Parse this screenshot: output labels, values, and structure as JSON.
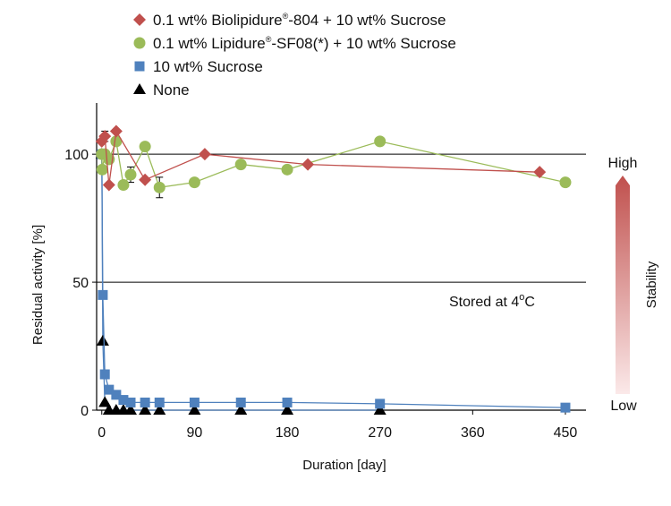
{
  "chart_data": {
    "type": "line",
    "xlabel": "Duration [day]",
    "ylabel": "Residual activity [%]",
    "xlim": [
      -5,
      470
    ],
    "ylim": [
      0,
      120
    ],
    "xticks": [
      0,
      90,
      180,
      270,
      360,
      450
    ],
    "yticks": [
      0,
      50,
      100
    ],
    "reference_lines": [
      50,
      100
    ],
    "grid": false,
    "legend_position": "top-left",
    "annotation": {
      "text_main": "Stored at 4",
      "text_sup": "o",
      "text_end": "C"
    },
    "stability_scale": {
      "label": "Stability",
      "high": "High",
      "low": "Low",
      "high_color": "#c0504d",
      "low_color": "#fbe9e9"
    },
    "series": [
      {
        "name_main": "0.1 wt% Biolipidure",
        "name_sup": "®",
        "name_end": "-804 + 10 wt% Sucrose",
        "marker": "diamond",
        "color": "#c0504d",
        "line_color": "#c0504d",
        "points": [
          [
            0,
            105
          ],
          [
            3,
            107
          ],
          [
            7,
            88
          ],
          [
            14,
            109
          ],
          [
            42,
            90
          ],
          [
            100,
            100
          ],
          [
            200,
            96
          ],
          [
            425,
            93
          ]
        ],
        "errors": [
          [
            3,
            2
          ]
        ]
      },
      {
        "name_main": "0.1 wt% Lipidure",
        "name_sup": "®",
        "name_end": "-SF08(*) + 10 wt% Sucrose",
        "marker": "circle",
        "color": "#9bbb59",
        "line_color": "#9bbb59",
        "points": [
          [
            0,
            100
          ],
          [
            0.5,
            94
          ],
          [
            3,
            100
          ],
          [
            7,
            98
          ],
          [
            14,
            105
          ],
          [
            21,
            88
          ],
          [
            28,
            92
          ],
          [
            42,
            103
          ],
          [
            56,
            87
          ],
          [
            90,
            89
          ],
          [
            135,
            96
          ],
          [
            180,
            94
          ],
          [
            270,
            105
          ],
          [
            450,
            89
          ]
        ],
        "errors": [
          [
            28,
            3
          ],
          [
            56,
            4
          ]
        ]
      },
      {
        "name_main": "10 wt% Sucrose",
        "name_sup": "",
        "name_end": "",
        "marker": "square",
        "color": "#4f81bd",
        "line_color": "#4f81bd",
        "points": [
          [
            0,
            100
          ],
          [
            1,
            45
          ],
          [
            3,
            14
          ],
          [
            7,
            8
          ],
          [
            14,
            6
          ],
          [
            21,
            4
          ],
          [
            28,
            3
          ],
          [
            42,
            3
          ],
          [
            56,
            3
          ],
          [
            90,
            3
          ],
          [
            135,
            3
          ],
          [
            180,
            3
          ],
          [
            270,
            2.5
          ],
          [
            450,
            1
          ]
        ],
        "errors": []
      },
      {
        "name_main": "None",
        "name_sup": "",
        "name_end": "",
        "marker": "triangle",
        "color": "#000000",
        "line_color": "#4f81bd",
        "points": [
          [
            0,
            100
          ],
          [
            1,
            27
          ],
          [
            3,
            3
          ],
          [
            7,
            0
          ],
          [
            14,
            0
          ],
          [
            21,
            0
          ],
          [
            28,
            0
          ],
          [
            42,
            0
          ],
          [
            56,
            0
          ],
          [
            90,
            0
          ],
          [
            135,
            0
          ],
          [
            180,
            0
          ],
          [
            270,
            0
          ]
        ],
        "errors": []
      }
    ]
  }
}
